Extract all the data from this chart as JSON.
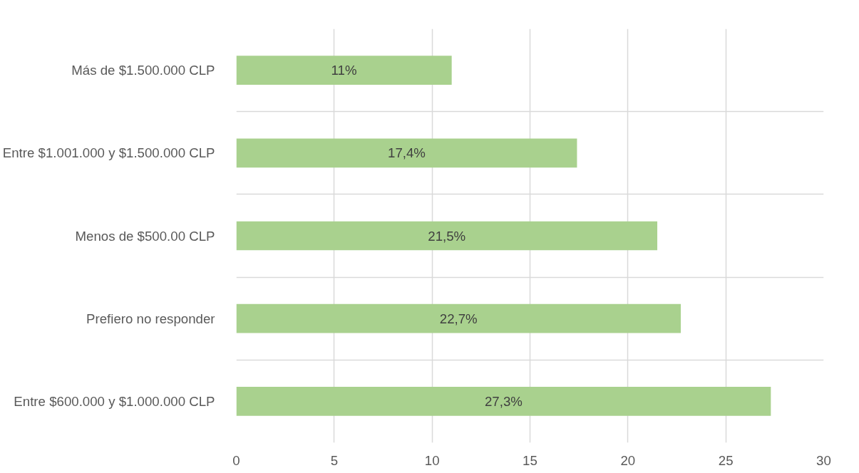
{
  "chart_data": {
    "type": "bar",
    "orientation": "horizontal",
    "categories": [
      "Más de $1.500.000 CLP",
      "Entre $1.001.000 y $1.500.000 CLP",
      "Menos de $500.00 CLP",
      "Prefiero no responder",
      "Entre $600.000 y $1.000.000 CLP"
    ],
    "values": [
      11,
      17.4,
      21.5,
      22.7,
      27.3
    ],
    "value_labels": [
      "11%",
      "17,4%",
      "21,5%",
      "22,7%",
      "27,3%"
    ],
    "color": "#a9d18e",
    "xlim": [
      0,
      30
    ],
    "xticks": [
      0,
      5,
      10,
      15,
      20,
      25,
      30
    ],
    "grid": true
  }
}
